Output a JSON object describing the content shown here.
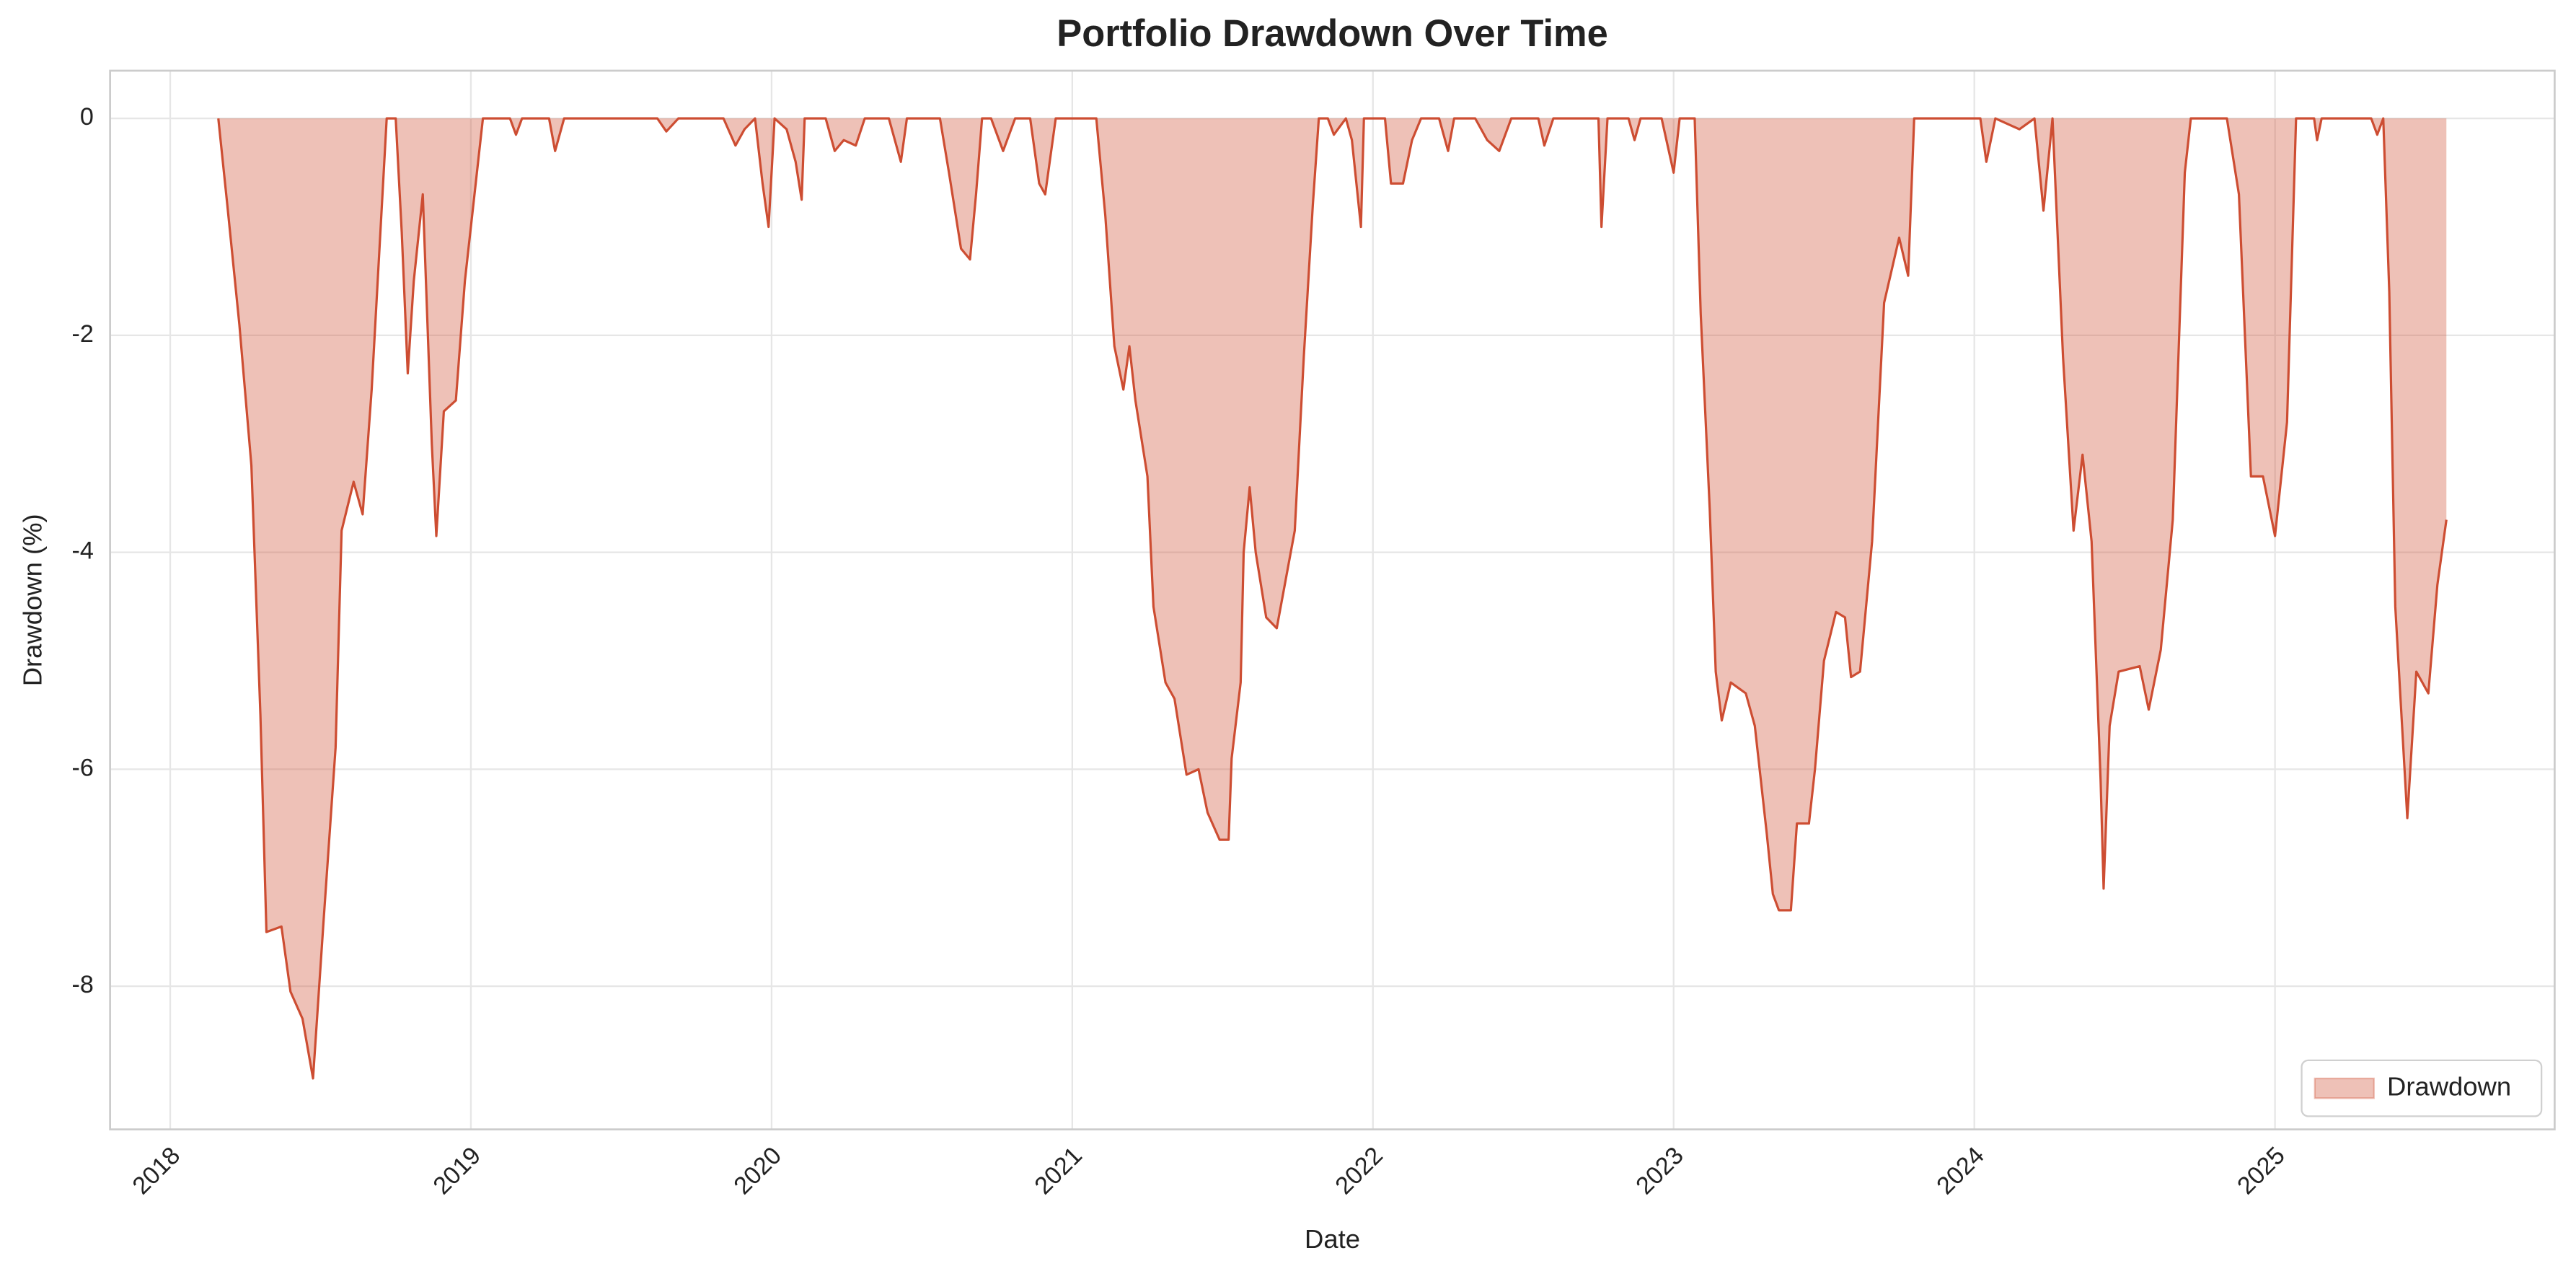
{
  "chart_data": {
    "type": "area",
    "title": "Portfolio Drawdown Over Time",
    "x_label": "Date",
    "y_label": "Drawdown (%)",
    "x": [
      2018.16,
      2018.19,
      2018.23,
      2018.27,
      2018.3,
      2018.32,
      2018.37,
      2018.4,
      2018.44,
      2018.475,
      2018.51,
      2018.55,
      2018.57,
      2018.61,
      2018.64,
      2018.67,
      2018.7,
      2018.72,
      2018.75,
      2018.77,
      2018.79,
      2018.81,
      2018.84,
      2018.87,
      2018.885,
      2018.91,
      2018.95,
      2018.98,
      2019.02,
      2019.04,
      2019.13,
      2019.15,
      2019.17,
      2019.26,
      2019.28,
      2019.31,
      2019.62,
      2019.65,
      2019.69,
      2019.84,
      2019.88,
      2019.91,
      2019.945,
      2019.97,
      2019.99,
      2020.01,
      2020.05,
      2020.08,
      2020.1,
      2020.11,
      2020.18,
      2020.21,
      2020.24,
      2020.28,
      2020.31,
      2020.39,
      2020.43,
      2020.45,
      2020.56,
      2020.59,
      2020.63,
      2020.66,
      2020.68,
      2020.7,
      2020.73,
      2020.77,
      2020.81,
      2020.86,
      2020.89,
      2020.91,
      2020.94,
      2020.945,
      2021.08,
      2021.11,
      2021.14,
      2021.17,
      2021.19,
      2021.21,
      2021.25,
      2021.27,
      2021.31,
      2021.34,
      2021.38,
      2021.42,
      2021.45,
      2021.49,
      2021.52,
      2021.53,
      2021.56,
      2021.57,
      2021.59,
      2021.61,
      2021.645,
      2021.68,
      2021.7,
      2021.74,
      2021.77,
      2021.8,
      2021.82,
      2021.85,
      2021.87,
      2021.91,
      2021.93,
      2021.96,
      2021.97,
      2022.04,
      2022.06,
      2022.1,
      2022.13,
      2022.16,
      2022.22,
      2022.25,
      2022.27,
      2022.34,
      2022.38,
      2022.42,
      2022.46,
      2022.55,
      2022.57,
      2022.6,
      2022.75,
      2022.76,
      2022.78,
      2022.85,
      2022.87,
      2022.89,
      2022.96,
      2023.0,
      2023.02,
      2023.07,
      2023.09,
      2023.12,
      2023.14,
      2023.16,
      2023.19,
      2023.24,
      2023.27,
      2023.31,
      2023.33,
      2023.35,
      2023.39,
      2023.41,
      2023.45,
      2023.47,
      2023.5,
      2023.54,
      2023.57,
      2023.59,
      2023.62,
      2023.66,
      2023.7,
      2023.75,
      2023.78,
      2023.8,
      2024.02,
      2024.04,
      2024.07,
      2024.15,
      2024.2,
      2024.23,
      2024.26,
      2024.295,
      2024.33,
      2024.36,
      2024.39,
      2024.42,
      2024.43,
      2024.45,
      2024.48,
      2024.55,
      2024.58,
      2024.62,
      2024.66,
      2024.7,
      2024.72,
      2024.84,
      2024.88,
      2024.92,
      2024.96,
      2025.0,
      2025.04,
      2025.07,
      2025.13,
      2025.14,
      2025.155,
      2025.32,
      2025.34,
      2025.36,
      2025.38,
      2025.4,
      2025.44,
      2025.47,
      2025.51,
      2025.54,
      2025.57
    ],
    "series": [
      {
        "name": "Drawdown",
        "color": "#cd4d32",
        "fill": "#eec2b9",
        "values": [
          0,
          -0.8,
          -1.9,
          -3.2,
          -5.5,
          -7.5,
          -7.45,
          -8.05,
          -8.3,
          -8.85,
          -7.4,
          -5.8,
          -3.8,
          -3.35,
          -3.65,
          -2.5,
          -1.0,
          0,
          0,
          -1.05,
          -2.35,
          -1.5,
          -0.7,
          -3.0,
          -3.85,
          -2.7,
          -2.6,
          -1.5,
          -0.5,
          0,
          0,
          -0.15,
          0,
          0,
          -0.3,
          0,
          0,
          -0.12,
          0,
          0,
          -0.25,
          -0.1,
          0,
          -0.6,
          -1.0,
          0,
          -0.1,
          -0.4,
          -0.75,
          0,
          0,
          -0.3,
          -0.2,
          -0.25,
          0,
          0,
          -0.4,
          0,
          0,
          -0.5,
          -1.2,
          -1.3,
          -0.7,
          0,
          0,
          -0.3,
          0,
          0,
          -0.6,
          -0.7,
          -0.1,
          0,
          0,
          -0.9,
          -2.1,
          -2.5,
          -2.1,
          -2.6,
          -3.3,
          -4.5,
          -5.2,
          -5.35,
          -6.05,
          -6.0,
          -6.4,
          -6.65,
          -6.65,
          -5.9,
          -5.2,
          -4.0,
          -3.4,
          -4.0,
          -4.6,
          -4.7,
          -4.4,
          -3.8,
          -2.2,
          -0.8,
          0,
          0,
          -0.15,
          0,
          -0.2,
          -1.0,
          0,
          0,
          -0.6,
          -0.6,
          -0.2,
          0,
          0,
          -0.3,
          0,
          0,
          -0.2,
          -0.3,
          0,
          0,
          -0.25,
          0,
          0,
          -1.0,
          0,
          0,
          -0.2,
          0,
          0,
          -0.5,
          0,
          0,
          -1.8,
          -3.6,
          -5.1,
          -5.55,
          -5.2,
          -5.3,
          -5.6,
          -6.6,
          -7.15,
          -7.3,
          -7.3,
          -6.5,
          -6.5,
          -6.0,
          -5.0,
          -4.55,
          -4.6,
          -5.15,
          -5.1,
          -3.9,
          -1.7,
          -1.1,
          -1.45,
          0,
          0,
          -0.4,
          0,
          -0.1,
          0,
          -0.85,
          0,
          -2.2,
          -3.8,
          -3.1,
          -3.9,
          -6.1,
          -7.1,
          -5.6,
          -5.1,
          -5.05,
          -5.45,
          -4.9,
          -3.7,
          -0.5,
          0,
          0,
          -0.7,
          -3.3,
          -3.3,
          -3.85,
          -2.8,
          0,
          0,
          -0.2,
          0,
          0,
          -0.15,
          0,
          -1.6,
          -4.5,
          -6.45,
          -5.1,
          -5.3,
          -4.3,
          -3.7
        ]
      }
    ],
    "fill_alpha": 0.35,
    "xlim": [
      2017.8,
      2025.93
    ],
    "xticks": [
      2018,
      2019,
      2020,
      2021,
      2022,
      2023,
      2024,
      2025
    ],
    "ylim": [
      -9.32,
      0.44
    ],
    "yticks": [
      0,
      -2,
      -4,
      -6,
      -8
    ],
    "grid": true,
    "legend": "lower right"
  }
}
